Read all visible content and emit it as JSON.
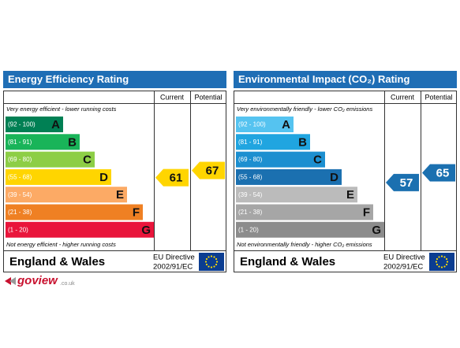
{
  "panels": [
    {
      "title": "Energy Efficiency Rating",
      "current_header": "Current",
      "potential_header": "Potential",
      "top_note": "Very energy efficient - lower running costs",
      "bottom_note": "Not energy efficient - higher running costs",
      "bands": [
        {
          "range": "(92 - 100)",
          "letter": "A",
          "color": "#008054"
        },
        {
          "range": "(81 - 91)",
          "letter": "B",
          "color": "#19b459"
        },
        {
          "range": "(69 - 80)",
          "letter": "C",
          "color": "#8dce46"
        },
        {
          "range": "(55 - 68)",
          "letter": "D",
          "color": "#ffd500"
        },
        {
          "range": "(39 - 54)",
          "letter": "E",
          "color": "#fcaa65"
        },
        {
          "range": "(21 - 38)",
          "letter": "F",
          "color": "#ef8023"
        },
        {
          "range": "(1 - 20)",
          "letter": "G",
          "color": "#e9153b"
        }
      ],
      "current": 61,
      "potential": 67,
      "footer": "England & Wales",
      "directive": "EU Directive",
      "directive_code": "2002/91/EC"
    },
    {
      "title": "Environmental Impact (CO₂) Rating",
      "current_header": "Current",
      "potential_header": "Potential",
      "top_note": "Very environmentally friendly - lower CO₂ emissions",
      "bottom_note": "Not environmentally friendly - higher CO₂ emissions",
      "bands": [
        {
          "range": "(92 - 100)",
          "letter": "A",
          "color": "#55c3f0"
        },
        {
          "range": "(81 - 91)",
          "letter": "B",
          "color": "#20a5e0"
        },
        {
          "range": "(69 - 80)",
          "letter": "C",
          "color": "#1c8fd0"
        },
        {
          "range": "(55 - 68)",
          "letter": "D",
          "color": "#1b70b0"
        },
        {
          "range": "(39 - 54)",
          "letter": "E",
          "color": "#bbbbbb"
        },
        {
          "range": "(21 - 38)",
          "letter": "F",
          "color": "#a6a6a6"
        },
        {
          "range": "(1 - 20)",
          "letter": "G",
          "color": "#8c8c8c"
        }
      ],
      "current": 57,
      "potential": 65,
      "footer": "England & Wales",
      "directive": "EU Directive",
      "directive_code": "2002/91/EC"
    }
  ],
  "logo": {
    "name": "goview",
    "suffix": ".co.uk"
  }
}
